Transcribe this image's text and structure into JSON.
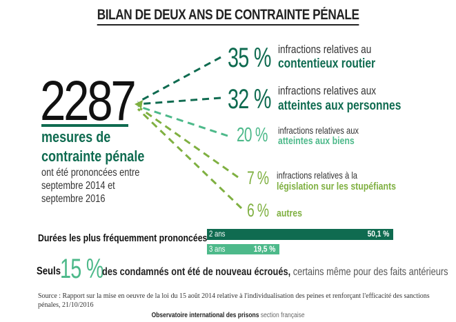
{
  "title": "BILAN DE DEUX ANS DE CONTRAINTE PÉNALE",
  "total": {
    "value": "2287",
    "label1": "mesures de",
    "label2": "contrainte pénale",
    "desc1": "ont été prononcées entre",
    "desc2": "septembre 2014 et",
    "desc3": "septembre 2016"
  },
  "colors": {
    "dark": "#0f6b50",
    "mid": "#4db98a",
    "light": "#7fb041"
  },
  "chart_data": [
    {
      "type": "bar",
      "title": "",
      "categories": [
        "contentieux routier",
        "atteintes aux personnes",
        "atteintes aux biens",
        "législation sur les stupéfiants",
        "autres"
      ],
      "values": [
        35,
        32,
        20,
        7,
        6
      ],
      "unit": "%"
    },
    {
      "type": "bar",
      "title": "Durées les plus fréquemment prononcées",
      "categories": [
        "2 ans",
        "3 ans"
      ],
      "values": [
        50.1,
        19.5
      ],
      "unit": "%"
    }
  ],
  "breakdown": [
    {
      "pct": "35 %",
      "line1": "infractions relatives au",
      "line2": "contentieux routier"
    },
    {
      "pct": "32 %",
      "line1": "infractions  relatives aux",
      "line2": "atteintes aux personnes"
    },
    {
      "pct": "20 %",
      "line1": "infractions  relatives aux",
      "line2": "atteintes aux biens"
    },
    {
      "pct": "7 %",
      "line1": "infractions  relatives à la",
      "line2": "législation sur les stupéfiants"
    },
    {
      "pct": "6 %",
      "line1": "",
      "line2": "autres"
    }
  ],
  "durations": {
    "label": "Durées les plus fréquemment prononcées",
    "bars": [
      {
        "name": "2 ans",
        "value": "50,1 %"
      },
      {
        "name": "3 ans",
        "value": "19,5 %"
      }
    ]
  },
  "recidive": {
    "prefix": "Seuls",
    "pct": "15 %",
    "bold": "des condamnés ont été de nouveau écroués,",
    "rest": " certains même pour des faits antérieurs"
  },
  "source1": "Source : Rapport sur la mise en oeuvre de la loi du 15 août 2014 relative à l'individualisation des peines et renforçant l'efficacité des sanctions",
  "source2": "pénales, 21/10/2016",
  "footer": {
    "org": "Observatoire international des prisons",
    "section": " section française"
  }
}
